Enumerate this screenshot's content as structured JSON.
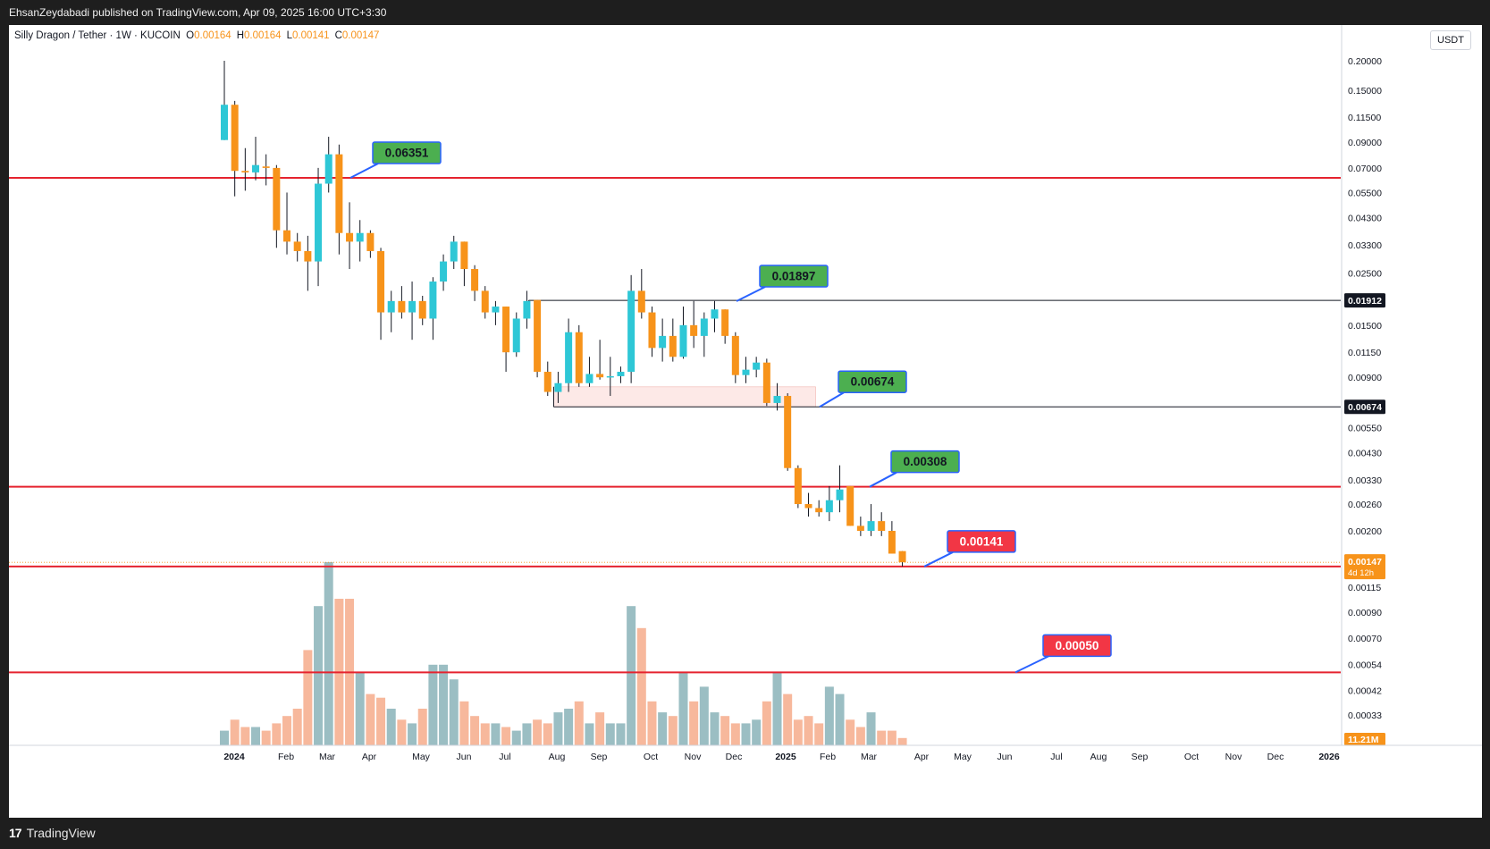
{
  "header": {
    "publish_text": "EhsanZeydabadi published on TradingView.com, Apr 09, 2025 16:00 UTC+3:30"
  },
  "footer": {
    "brand": "TradingView",
    "logo": "tv-logo-icon"
  },
  "legend": {
    "symbol": "Silly Dragon / Tether · 1W · KUCOIN",
    "o_label": "O",
    "o_value": "0.00164",
    "h_label": "H",
    "h_value": "0.00164",
    "l_label": "L",
    "l_value": "0.00141",
    "c_label": "C",
    "c_value": "0.00147"
  },
  "currency_label": "USDT",
  "colors": {
    "up": "#2ec7d6",
    "down": "#f7931a",
    "vol_up": "#9bbec3",
    "vol_down": "#f7b89c",
    "red_line": "#e5232f",
    "label_green": "#4caf50",
    "label_red": "#f23645",
    "label_border": "#2962ff",
    "zone_fill": "#fde9e7"
  },
  "chart_data": {
    "type": "candlestick",
    "scale": "log",
    "interval": "1W",
    "x_axis_labels": [
      "2024",
      "Feb",
      "Mar",
      "Apr",
      "May",
      "Jun",
      "Jul",
      "Aug",
      "Sep",
      "Oct",
      "Nov",
      "Dec",
      "2025",
      "Feb",
      "Mar",
      "Apr",
      "May",
      "Jun",
      "Jul",
      "Aug",
      "Sep",
      "Oct",
      "Nov",
      "Dec",
      "2026"
    ],
    "y_axis_labels": [
      "0.20000",
      "0.15000",
      "0.11500",
      "0.09000",
      "0.07000",
      "0.05500",
      "0.04300",
      "0.03300",
      "0.02500",
      "0.01500",
      "0.01150",
      "0.00900",
      "0.00550",
      "0.00430",
      "0.00330",
      "0.00260",
      "0.00200",
      "0.00115",
      "0.00090",
      "0.00070",
      "0.00054",
      "0.00042",
      "0.00033"
    ],
    "candles": [
      {
        "o": 0.092,
        "h": 0.2,
        "l": 0.092,
        "c": 0.13
      },
      {
        "o": 0.13,
        "h": 0.135,
        "l": 0.053,
        "c": 0.068
      },
      {
        "o": 0.068,
        "h": 0.085,
        "l": 0.056,
        "c": 0.067
      },
      {
        "o": 0.067,
        "h": 0.095,
        "l": 0.062,
        "c": 0.072
      },
      {
        "o": 0.071,
        "h": 0.08,
        "l": 0.059,
        "c": 0.07
      },
      {
        "o": 0.07,
        "h": 0.072,
        "l": 0.032,
        "c": 0.038
      },
      {
        "o": 0.038,
        "h": 0.055,
        "l": 0.03,
        "c": 0.034
      },
      {
        "o": 0.034,
        "h": 0.037,
        "l": 0.028,
        "c": 0.031
      },
      {
        "o": 0.031,
        "h": 0.036,
        "l": 0.021,
        "c": 0.028
      },
      {
        "o": 0.028,
        "h": 0.07,
        "l": 0.022,
        "c": 0.06
      },
      {
        "o": 0.06,
        "h": 0.095,
        "l": 0.055,
        "c": 0.08
      },
      {
        "o": 0.08,
        "h": 0.088,
        "l": 0.03,
        "c": 0.037
      },
      {
        "o": 0.037,
        "h": 0.05,
        "l": 0.026,
        "c": 0.034
      },
      {
        "o": 0.034,
        "h": 0.042,
        "l": 0.028,
        "c": 0.037
      },
      {
        "o": 0.037,
        "h": 0.038,
        "l": 0.029,
        "c": 0.031
      },
      {
        "o": 0.031,
        "h": 0.032,
        "l": 0.013,
        "c": 0.017
      },
      {
        "o": 0.017,
        "h": 0.021,
        "l": 0.014,
        "c": 0.019
      },
      {
        "o": 0.019,
        "h": 0.022,
        "l": 0.016,
        "c": 0.017
      },
      {
        "o": 0.017,
        "h": 0.023,
        "l": 0.013,
        "c": 0.019
      },
      {
        "o": 0.019,
        "h": 0.02,
        "l": 0.015,
        "c": 0.016
      },
      {
        "o": 0.016,
        "h": 0.024,
        "l": 0.013,
        "c": 0.023
      },
      {
        "o": 0.023,
        "h": 0.03,
        "l": 0.021,
        "c": 0.028
      },
      {
        "o": 0.028,
        "h": 0.036,
        "l": 0.026,
        "c": 0.034
      },
      {
        "o": 0.034,
        "h": 0.034,
        "l": 0.022,
        "c": 0.026
      },
      {
        "o": 0.026,
        "h": 0.027,
        "l": 0.019,
        "c": 0.021
      },
      {
        "o": 0.021,
        "h": 0.022,
        "l": 0.016,
        "c": 0.017
      },
      {
        "o": 0.017,
        "h": 0.019,
        "l": 0.015,
        "c": 0.018
      },
      {
        "o": 0.018,
        "h": 0.018,
        "l": 0.0095,
        "c": 0.0115
      },
      {
        "o": 0.0115,
        "h": 0.017,
        "l": 0.011,
        "c": 0.016
      },
      {
        "o": 0.016,
        "h": 0.021,
        "l": 0.0145,
        "c": 0.019
      },
      {
        "o": 0.0192,
        "h": 0.0192,
        "l": 0.009,
        "c": 0.0095
      },
      {
        "o": 0.0095,
        "h": 0.0105,
        "l": 0.0075,
        "c": 0.0078
      },
      {
        "o": 0.0078,
        "h": 0.0095,
        "l": 0.007,
        "c": 0.0085
      },
      {
        "o": 0.0085,
        "h": 0.016,
        "l": 0.0078,
        "c": 0.014
      },
      {
        "o": 0.014,
        "h": 0.015,
        "l": 0.0082,
        "c": 0.0085
      },
      {
        "o": 0.0085,
        "h": 0.011,
        "l": 0.0082,
        "c": 0.0093
      },
      {
        "o": 0.0093,
        "h": 0.013,
        "l": 0.0088,
        "c": 0.009
      },
      {
        "o": 0.009,
        "h": 0.011,
        "l": 0.0075,
        "c": 0.0091
      },
      {
        "o": 0.0091,
        "h": 0.01,
        "l": 0.0085,
        "c": 0.0095
      },
      {
        "o": 0.0095,
        "h": 0.0245,
        "l": 0.0085,
        "c": 0.021
      },
      {
        "o": 0.021,
        "h": 0.026,
        "l": 0.016,
        "c": 0.017
      },
      {
        "o": 0.017,
        "h": 0.018,
        "l": 0.011,
        "c": 0.012
      },
      {
        "o": 0.012,
        "h": 0.016,
        "l": 0.0105,
        "c": 0.0135
      },
      {
        "o": 0.0135,
        "h": 0.016,
        "l": 0.0105,
        "c": 0.011
      },
      {
        "o": 0.011,
        "h": 0.018,
        "l": 0.0108,
        "c": 0.015
      },
      {
        "o": 0.015,
        "h": 0.019,
        "l": 0.012,
        "c": 0.0135
      },
      {
        "o": 0.0135,
        "h": 0.017,
        "l": 0.011,
        "c": 0.016
      },
      {
        "o": 0.016,
        "h": 0.019,
        "l": 0.014,
        "c": 0.0175
      },
      {
        "o": 0.0175,
        "h": 0.0175,
        "l": 0.0125,
        "c": 0.0135
      },
      {
        "o": 0.0135,
        "h": 0.014,
        "l": 0.0085,
        "c": 0.0092
      },
      {
        "o": 0.0092,
        "h": 0.011,
        "l": 0.0085,
        "c": 0.0097
      },
      {
        "o": 0.0097,
        "h": 0.011,
        "l": 0.009,
        "c": 0.0104
      },
      {
        "o": 0.0104,
        "h": 0.0108,
        "l": 0.0068,
        "c": 0.007
      },
      {
        "o": 0.007,
        "h": 0.0085,
        "l": 0.0065,
        "c": 0.0075
      },
      {
        "o": 0.0075,
        "h": 0.0077,
        "l": 0.0036,
        "c": 0.0037
      },
      {
        "o": 0.0037,
        "h": 0.0038,
        "l": 0.0025,
        "c": 0.0026
      },
      {
        "o": 0.0026,
        "h": 0.0029,
        "l": 0.0023,
        "c": 0.0025
      },
      {
        "o": 0.0025,
        "h": 0.0027,
        "l": 0.0023,
        "c": 0.0024
      },
      {
        "o": 0.0024,
        "h": 0.0031,
        "l": 0.0022,
        "c": 0.0027
      },
      {
        "o": 0.0027,
        "h": 0.0038,
        "l": 0.0024,
        "c": 0.003
      },
      {
        "o": 0.0031,
        "h": 0.0031,
        "l": 0.0021,
        "c": 0.0021
      },
      {
        "o": 0.0021,
        "h": 0.0023,
        "l": 0.0019,
        "c": 0.002
      },
      {
        "o": 0.002,
        "h": 0.0026,
        "l": 0.0019,
        "c": 0.0022
      },
      {
        "o": 0.0022,
        "h": 0.0024,
        "l": 0.0019,
        "c": 0.002
      },
      {
        "o": 0.002,
        "h": 0.0022,
        "l": 0.0016,
        "c": 0.0016
      },
      {
        "o": 0.00164,
        "h": 0.00164,
        "l": 0.00141,
        "c": 0.00147
      }
    ],
    "volumes": [
      4,
      7,
      5,
      5,
      4,
      6,
      8,
      10,
      26,
      38,
      50,
      40,
      40,
      20,
      14,
      13,
      10,
      7,
      6,
      10,
      22,
      22,
      18,
      12,
      8,
      6,
      6,
      5,
      4,
      6,
      7,
      6,
      9,
      10,
      12,
      6,
      9,
      6,
      6,
      38,
      32,
      12,
      9,
      8,
      20,
      12,
      16,
      9,
      8,
      6,
      6,
      7,
      12,
      20,
      14,
      7,
      8,
      6,
      16,
      14,
      7,
      5,
      9,
      4,
      4,
      2
    ],
    "horizontal_lines": [
      0.06351,
      0.00308,
      0.00141,
      0.0005
    ],
    "level_lines": [
      {
        "price": 0.01912,
        "label": "0.01912"
      },
      {
        "price": 0.00674,
        "label": "0.00674"
      }
    ],
    "zone": {
      "top": 0.0082,
      "bottom": 0.00674
    },
    "callouts": [
      {
        "price": 0.06351,
        "text": "0.06351",
        "kind": "green"
      },
      {
        "price": 0.01897,
        "text": "0.01897",
        "kind": "green"
      },
      {
        "price": 0.00674,
        "text": "0.00674",
        "kind": "green"
      },
      {
        "price": 0.00308,
        "text": "0.00308",
        "kind": "green"
      },
      {
        "price": 0.00141,
        "text": "0.00141",
        "kind": "red"
      },
      {
        "price": 0.0005,
        "text": "0.00050",
        "kind": "red"
      }
    ],
    "last_price": {
      "value": "0.00147",
      "countdown": "4d 12h"
    },
    "volume_label": "11.21M"
  }
}
